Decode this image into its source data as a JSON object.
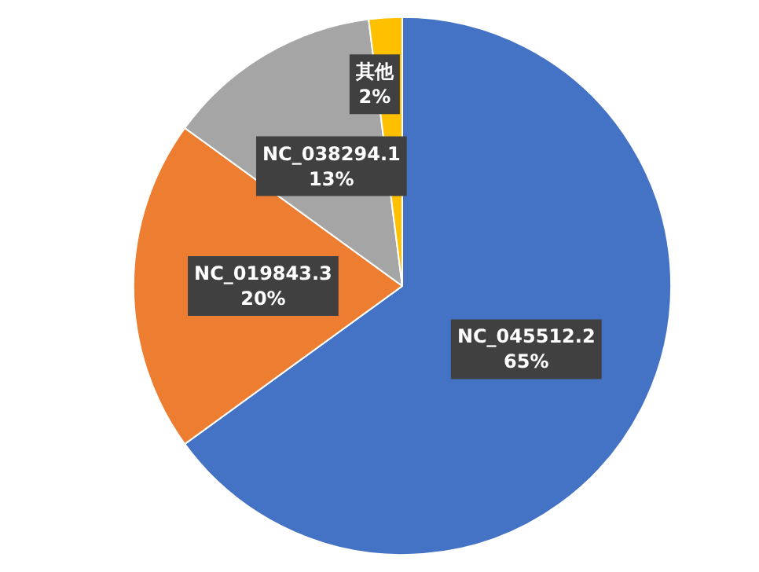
{
  "chart_data": {
    "type": "pie",
    "categories": [
      "NC_045512.2",
      "NC_019843.3",
      "NC_038294.1",
      "其他"
    ],
    "values": [
      65,
      20,
      13,
      2
    ],
    "colors": [
      "#4472c4",
      "#ed7d31",
      "#a5a5a5",
      "#ffc000"
    ],
    "value_labels": [
      "65%",
      "20%",
      "13%",
      "2%"
    ],
    "legend": false
  }
}
